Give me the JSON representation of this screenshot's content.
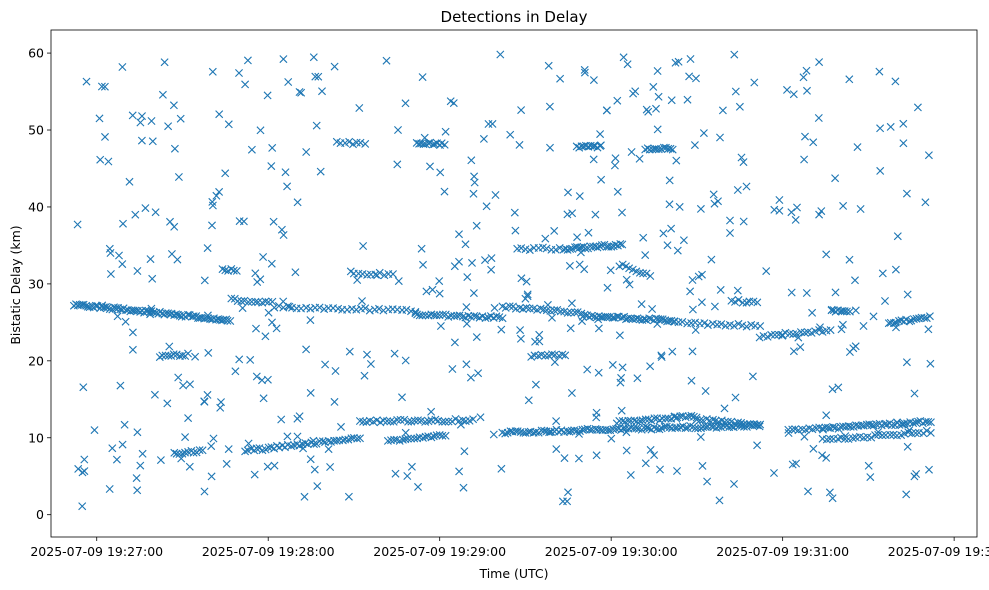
{
  "chart_data": {
    "type": "scatter",
    "title": "Detections in Delay",
    "xlabel": "Time (UTC)",
    "ylabel": "Bistatic Delay (km)",
    "marker": "x",
    "color": "#1f77b4",
    "x_unit": "seconds since 2025-07-09 19:26:52",
    "xlim": [
      -8,
      316
    ],
    "ylim": [
      -2.9,
      63
    ],
    "xticks": [
      {
        "value": 8,
        "label": "2025-07-09 19:27:00"
      },
      {
        "value": 68,
        "label": "2025-07-09 19:28:00"
      },
      {
        "value": 128,
        "label": "2025-07-09 19:29:00"
      },
      {
        "value": 188,
        "label": "2025-07-09 19:30:00"
      },
      {
        "value": 248,
        "label": "2025-07-09 19:31:00"
      },
      {
        "value": 308,
        "label": "2025-07-09 19:32:00"
      }
    ],
    "yticks": [
      {
        "value": 0,
        "label": "0"
      },
      {
        "value": 10,
        "label": "10"
      },
      {
        "value": 20,
        "label": "20"
      },
      {
        "value": 30,
        "label": "30"
      },
      {
        "value": 40,
        "label": "40"
      },
      {
        "value": 50,
        "label": "50"
      },
      {
        "value": 60,
        "label": "60"
      }
    ],
    "time_span": [
      0,
      300
    ],
    "tracks": [
      {
        "x": [
          0,
          55
        ],
        "y": [
          27.3,
          25.3
        ],
        "step": 0.7
      },
      {
        "x": [
          55,
          70
        ],
        "y": [
          28.0,
          27.5
        ],
        "step": 1.2
      },
      {
        "x": [
          70,
          120
        ],
        "y": [
          27.0,
          26.5
        ],
        "step": 1.6
      },
      {
        "x": [
          120,
          150
        ],
        "y": [
          26.0,
          25.6
        ],
        "step": 1.0
      },
      {
        "x": [
          150,
          178
        ],
        "y": [
          27.0,
          26.2
        ],
        "step": 1.2
      },
      {
        "x": [
          178,
          210
        ],
        "y": [
          25.9,
          25.2
        ],
        "step": 0.8
      },
      {
        "x": [
          210,
          240
        ],
        "y": [
          25.0,
          24.5
        ],
        "step": 1.5
      },
      {
        "x": [
          240,
          265
        ],
        "y": [
          23.2,
          24.0
        ],
        "step": 1.3
      },
      {
        "x": [
          265,
          272
        ],
        "y": [
          26.5,
          26.5
        ],
        "step": 0.8
      },
      {
        "x": [
          285,
          300
        ],
        "y": [
          24.8,
          25.8
        ],
        "step": 0.9
      },
      {
        "x": [
          35,
          45
        ],
        "y": [
          8.0,
          8.3
        ],
        "step": 1.0
      },
      {
        "x": [
          60,
          100
        ],
        "y": [
          8.3,
          10.0
        ],
        "step": 1.0
      },
      {
        "x": [
          100,
          140
        ],
        "y": [
          12.1,
          12.3
        ],
        "step": 1.2
      },
      {
        "x": [
          110,
          130
        ],
        "y": [
          9.6,
          10.3
        ],
        "step": 1.0
      },
      {
        "x": [
          150,
          240
        ],
        "y": [
          10.7,
          11.6
        ],
        "step": 0.9
      },
      {
        "x": [
          190,
          218
        ],
        "y": [
          12.0,
          12.8
        ],
        "step": 1.0
      },
      {
        "x": [
          218,
          240
        ],
        "y": [
          12.4,
          11.6
        ],
        "step": 1.1
      },
      {
        "x": [
          250,
          262
        ],
        "y": [
          11.0,
          11.2
        ],
        "step": 1.2
      },
      {
        "x": [
          262,
          300
        ],
        "y": [
          11.2,
          12.1
        ],
        "step": 0.9
      },
      {
        "x": [
          262,
          300
        ],
        "y": [
          9.7,
          10.8
        ],
        "step": 1.3
      },
      {
        "x": [
          172,
          192
        ],
        "y": [
          34.5,
          35.1
        ],
        "step": 0.8
      },
      {
        "x": [
          192,
          202
        ],
        "y": [
          32.5,
          31.0
        ],
        "step": 1.2
      },
      {
        "x": [
          155,
          172
        ],
        "y": [
          34.5,
          34.6
        ],
        "step": 1.5
      },
      {
        "x": [
          52,
          57
        ],
        "y": [
          31.8,
          31.8
        ],
        "step": 1.0
      },
      {
        "x": [
          98,
          112
        ],
        "y": [
          31.3,
          31.3
        ],
        "step": 1.5
      },
      {
        "x": [
          120,
          130
        ],
        "y": [
          48.2,
          48.2
        ],
        "step": 0.8
      },
      {
        "x": [
          176,
          184
        ],
        "y": [
          47.8,
          47.8
        ],
        "step": 0.8
      },
      {
        "x": [
          200,
          210
        ],
        "y": [
          47.6,
          47.6
        ],
        "step": 0.8
      },
      {
        "x": [
          30,
          40
        ],
        "y": [
          20.6,
          20.8
        ],
        "step": 1.0
      },
      {
        "x": [
          160,
          172
        ],
        "y": [
          20.6,
          20.8
        ],
        "step": 1.2
      },
      {
        "x": [
          92,
          103
        ],
        "y": [
          48.3,
          48.3
        ],
        "step": 1.4
      },
      {
        "x": [
          230,
          240
        ],
        "y": [
          27.8,
          27.6
        ],
        "step": 1.3
      }
    ],
    "noise_count": 520,
    "noise_seed": 271828
  }
}
